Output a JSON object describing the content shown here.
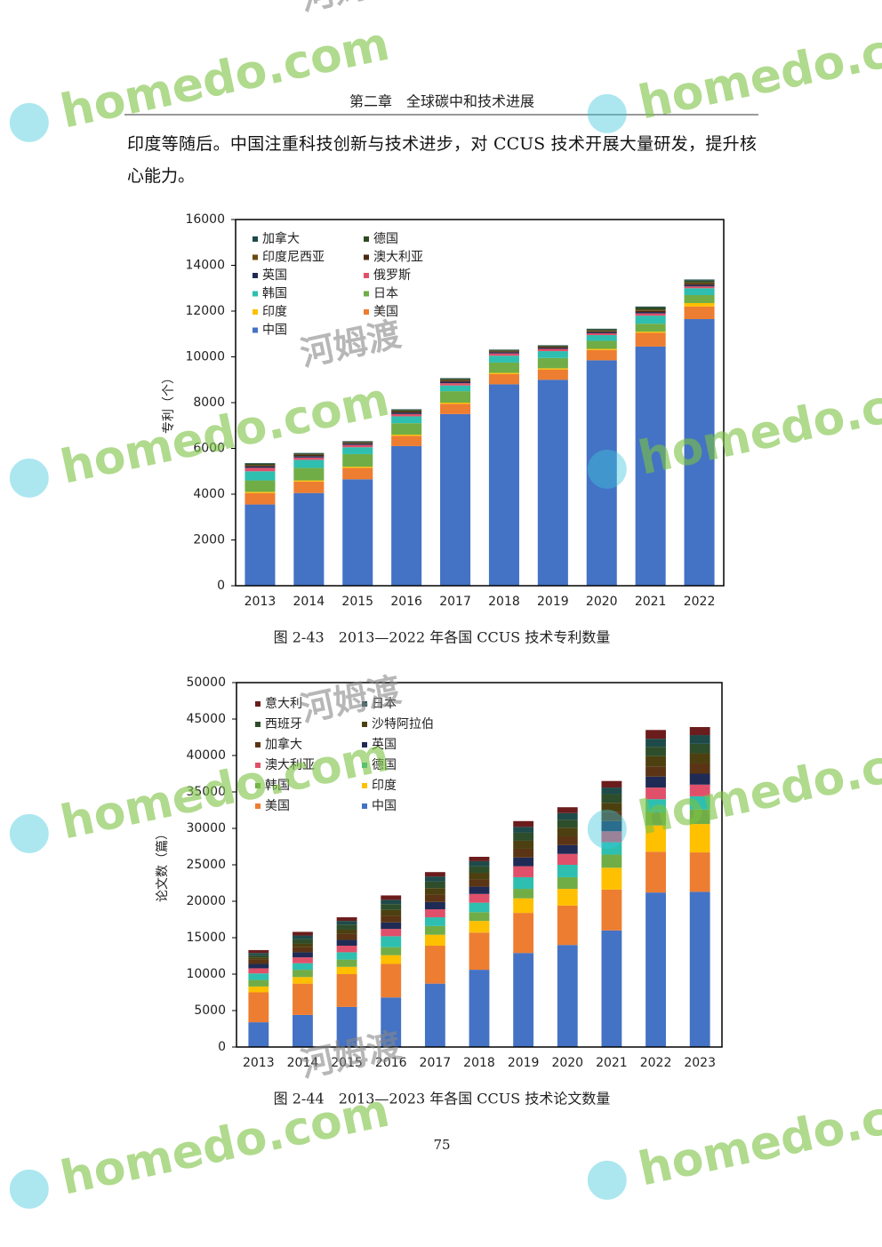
{
  "header": "第二章　全球碳中和技术进展",
  "paragraph": "印度等随后。中国注重科技创新与技术进步，对 CCUS 技术开展大量研发，提升核心能力。",
  "watermark": {
    "brand": "homedo.com",
    "name": "河姆渡"
  },
  "chart_data": [
    {
      "type": "bar",
      "stacked": true,
      "caption": "图 2-43　2013—2022 年各国 CCUS 技术专利数量",
      "y_label": "专利（个）",
      "categories": [
        "2013",
        "2014",
        "2015",
        "2016",
        "2017",
        "2018",
        "2019",
        "2020",
        "2021",
        "2022"
      ],
      "ylim": [
        0,
        16000
      ],
      "yticks": [
        0,
        2000,
        4000,
        6000,
        8000,
        10000,
        12000,
        14000,
        16000
      ],
      "series": [
        {
          "name": "中国",
          "color": "#4472c4",
          "values": [
            3550,
            4050,
            4650,
            6100,
            7500,
            8800,
            9000,
            9850,
            10450,
            11650
          ]
        },
        {
          "name": "美国",
          "color": "#ed7d31",
          "values": [
            500,
            500,
            500,
            450,
            450,
            450,
            450,
            450,
            600,
            550
          ]
        },
        {
          "name": "印度",
          "color": "#ffc000",
          "values": [
            50,
            50,
            50,
            50,
            50,
            50,
            50,
            50,
            50,
            150
          ]
        },
        {
          "name": "日本",
          "color": "#70ad47",
          "values": [
            500,
            550,
            550,
            500,
            500,
            450,
            450,
            350,
            350,
            350
          ]
        },
        {
          "name": "韩国",
          "color": "#2ebfb0",
          "values": [
            400,
            350,
            300,
            300,
            250,
            300,
            300,
            250,
            350,
            300
          ]
        },
        {
          "name": "俄罗斯",
          "color": "#e0506a",
          "values": [
            150,
            100,
            100,
            100,
            100,
            100,
            100,
            80,
            100,
            80
          ]
        },
        {
          "name": "英国",
          "color": "#1f2b55",
          "values": [
            60,
            60,
            50,
            60,
            60,
            50,
            40,
            50,
            60,
            60
          ]
        },
        {
          "name": "澳大利亚",
          "color": "#4a2a14",
          "values": [
            50,
            50,
            40,
            50,
            50,
            40,
            40,
            40,
            50,
            60
          ]
        },
        {
          "name": "印度尼西亚",
          "color": "#6b4a10",
          "values": [
            20,
            20,
            20,
            20,
            30,
            20,
            20,
            30,
            50,
            50
          ]
        },
        {
          "name": "德国",
          "color": "#2e4a22",
          "values": [
            50,
            40,
            40,
            50,
            50,
            40,
            40,
            50,
            100,
            80
          ]
        },
        {
          "name": "加拿大",
          "color": "#1e4a4a",
          "values": [
            30,
            30,
            20,
            30,
            30,
            20,
            20,
            30,
            40,
            50
          ]
        }
      ]
    },
    {
      "type": "bar",
      "stacked": true,
      "caption": "图 2-44　2013—2023 年各国 CCUS 技术论文数量",
      "y_label": "论文数（篇）",
      "categories": [
        "2013",
        "2014",
        "2015",
        "2016",
        "2017",
        "2018",
        "2019",
        "2020",
        "2021",
        "2022",
        "2023"
      ],
      "ylim": [
        0,
        50000
      ],
      "yticks": [
        0,
        5000,
        10000,
        15000,
        20000,
        25000,
        30000,
        35000,
        40000,
        45000,
        50000
      ],
      "series": [
        {
          "name": "中国",
          "color": "#4472c4",
          "values": [
            3400,
            4400,
            5500,
            6800,
            8700,
            10600,
            12900,
            14000,
            16000,
            21200,
            21300
          ]
        },
        {
          "name": "美国",
          "color": "#ed7d31",
          "values": [
            4100,
            4300,
            4500,
            4600,
            5200,
            5100,
            5500,
            5400,
            5600,
            5600,
            5400
          ]
        },
        {
          "name": "印度",
          "color": "#ffc000",
          "values": [
            800,
            900,
            1000,
            1200,
            1500,
            1600,
            2000,
            2300,
            3000,
            3600,
            3900
          ]
        },
        {
          "name": "韩国",
          "color": "#70ad47",
          "values": [
            900,
            1000,
            1000,
            1100,
            1200,
            1200,
            1300,
            1600,
            1800,
            1800,
            2000
          ]
        },
        {
          "name": "德国",
          "color": "#2ebfb0",
          "values": [
            900,
            900,
            1000,
            1500,
            1200,
            1300,
            1600,
            1700,
            1700,
            1800,
            1800
          ]
        },
        {
          "name": "澳大利亚",
          "color": "#e0506a",
          "values": [
            700,
            800,
            900,
            1000,
            1100,
            1200,
            1500,
            1500,
            1500,
            1600,
            1600
          ]
        },
        {
          "name": "英国",
          "color": "#1f2b55",
          "values": [
            600,
            700,
            800,
            900,
            1000,
            1000,
            1200,
            1200,
            1400,
            1500,
            1500
          ]
        },
        {
          "name": "加拿大",
          "color": "#5a3414",
          "values": [
            600,
            700,
            800,
            900,
            1000,
            1000,
            1200,
            1200,
            1300,
            1400,
            1400
          ]
        },
        {
          "name": "沙特阿拉伯",
          "color": "#4d4010",
          "values": [
            300,
            500,
            600,
            800,
            900,
            900,
            1100,
            1200,
            1200,
            1400,
            1400
          ]
        },
        {
          "name": "西班牙",
          "color": "#2e4d2a",
          "values": [
            300,
            600,
            700,
            800,
            900,
            900,
            1100,
            1100,
            1200,
            1300,
            1300
          ]
        },
        {
          "name": "日本",
          "color": "#1e4a4a",
          "values": [
            300,
            500,
            500,
            600,
            700,
            700,
            800,
            900,
            900,
            1100,
            1200
          ]
        },
        {
          "name": "意大利",
          "color": "#6b1c1c",
          "values": [
            400,
            500,
            500,
            600,
            600,
            600,
            800,
            800,
            900,
            1200,
            1100
          ]
        }
      ]
    }
  ],
  "page_number": "75"
}
